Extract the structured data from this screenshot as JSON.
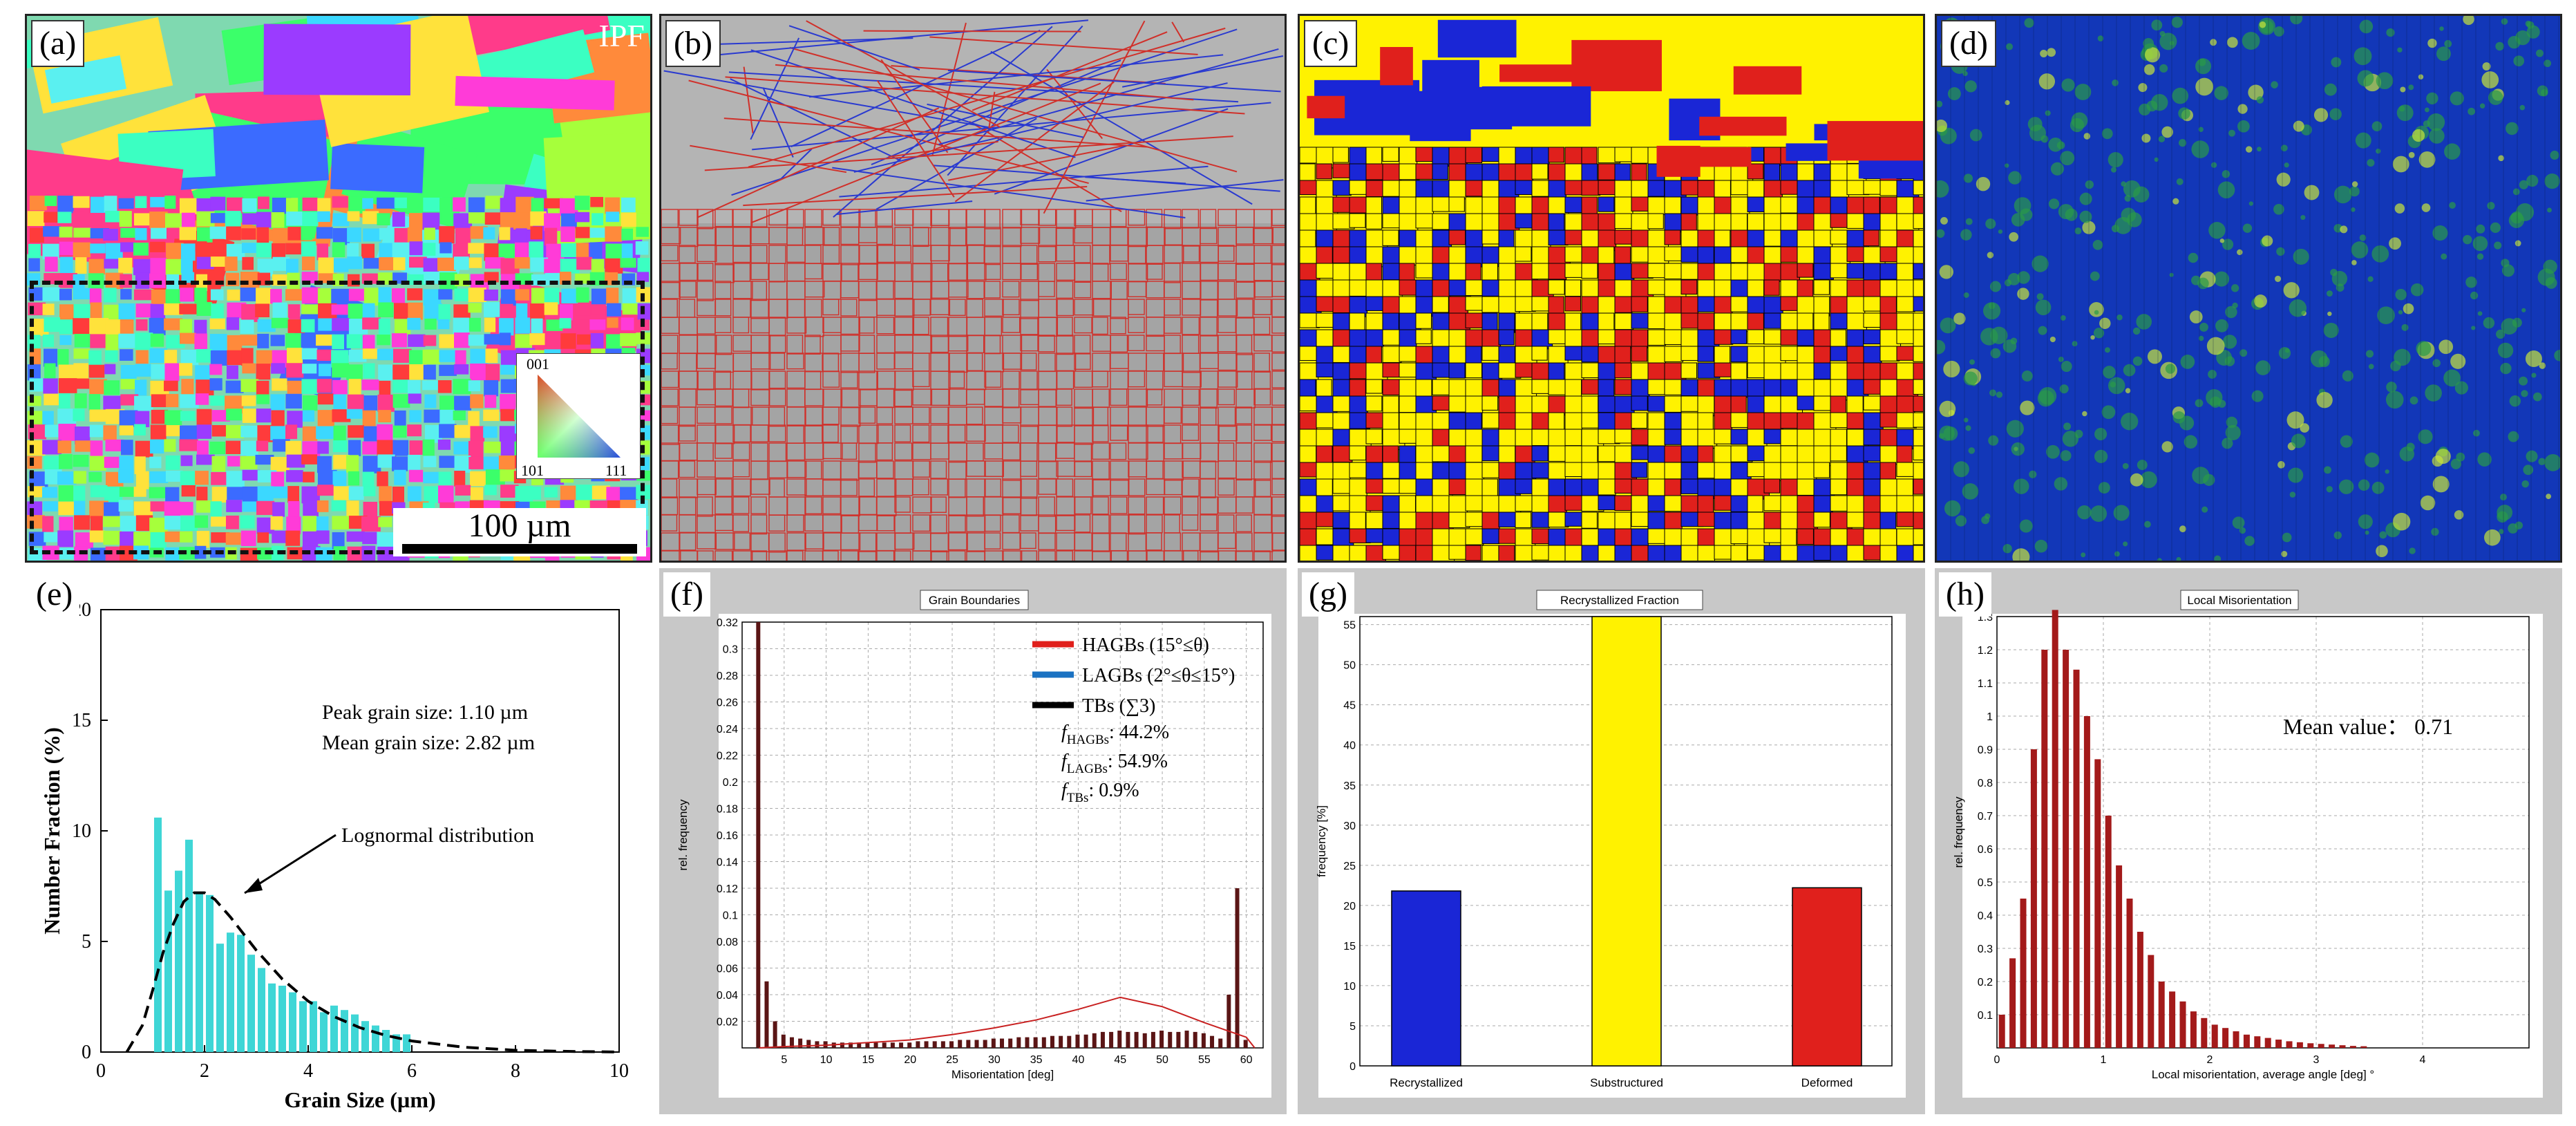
{
  "panels": {
    "a": {
      "label": "(a)",
      "corner_text": "IPF",
      "scalebar": "100 µm",
      "legend_001": "001",
      "legend_101": "101",
      "legend_111": "111"
    },
    "b": {
      "label": "(b)"
    },
    "c": {
      "label": "(c)"
    },
    "d": {
      "label": "(d)"
    },
    "e": {
      "label": "(e)"
    },
    "f": {
      "label": "(f)",
      "title": "Grain Boundaries"
    },
    "g": {
      "label": "(g)",
      "title": "Recrystallized Fraction"
    },
    "h": {
      "label": "(h)",
      "title": "Local Misorientation"
    }
  },
  "colors": {
    "red": "#e0201c",
    "blue": "#1a26d6",
    "yellow": "#fff200",
    "cyan": "#3fd6d6",
    "bar_dark": "#5a1515",
    "bar_h": "#a31a1a",
    "green_map": "#2a9a48"
  },
  "chart_data": [
    {
      "id": "e",
      "type": "bar",
      "xlabel": "Grain Size (µm)",
      "ylabel": "Number Fraction (%)",
      "xlim": [
        0,
        10
      ],
      "ylim": [
        0,
        20
      ],
      "xticks": [
        0,
        2,
        4,
        6,
        8,
        10
      ],
      "yticks": [
        0,
        5,
        10,
        15,
        20
      ],
      "annotations": [
        "Peak grain size:  1.10 µm",
        "Mean grain size:  2.82 µm",
        "Lognormal distribution"
      ],
      "bins_x": [
        1.1,
        1.3,
        1.5,
        1.7,
        1.9,
        2.1,
        2.3,
        2.5,
        2.7,
        2.9,
        3.1,
        3.3,
        3.5,
        3.7,
        3.9,
        4.1,
        4.3,
        4.5,
        4.7,
        4.9,
        5.1,
        5.3,
        5.5,
        5.7,
        5.9
      ],
      "values": [
        10.6,
        7.3,
        8.2,
        9.6,
        7.2,
        7.1,
        4.9,
        5.4,
        5.3,
        4.4,
        3.8,
        3.1,
        3.0,
        2.7,
        2.3,
        2.3,
        1.8,
        2.1,
        1.9,
        1.7,
        1.4,
        1.2,
        1.0,
        0.8,
        0.8
      ],
      "curve_x": [
        0.5,
        0.8,
        1.0,
        1.2,
        1.4,
        1.6,
        1.8,
        2.0,
        2.2,
        2.5,
        2.8,
        3.0,
        3.5,
        4.0,
        4.5,
        5.0,
        5.5,
        6.0,
        7.0,
        8.0,
        9.0,
        10.0
      ],
      "curve_y": [
        0.0,
        1.2,
        2.8,
        4.5,
        5.8,
        6.8,
        7.2,
        7.2,
        6.9,
        6.1,
        5.2,
        4.6,
        3.3,
        2.3,
        1.6,
        1.1,
        0.75,
        0.5,
        0.22,
        0.08,
        0.03,
        0.0
      ]
    },
    {
      "id": "f",
      "type": "bar",
      "title": "Grain Boundaries",
      "xlabel": "Misorientation [deg]",
      "ylabel": "rel. frequency",
      "xlim": [
        0,
        62
      ],
      "ylim": [
        0,
        0.32
      ],
      "xticks": [
        5,
        10,
        15,
        20,
        25,
        30,
        35,
        40,
        45,
        50,
        55,
        60
      ],
      "yticks": [
        0.02,
        0.04,
        0.06,
        0.08,
        0.1,
        0.12,
        0.14,
        0.16,
        0.18,
        0.2,
        0.22,
        0.24,
        0.26,
        0.28,
        0.3,
        0.32
      ],
      "legend": [
        {
          "name": "HAGBs (15°≤θ)",
          "color": "#e0201c"
        },
        {
          "name": "LAGBs (2°≤θ≤15°)",
          "color": "#1b72c2"
        },
        {
          "name": "TBs (∑3)",
          "color": "#000000"
        }
      ],
      "fractions": [
        {
          "sym": "f",
          "sub": "HAGBs",
          "value": ": 44.2%"
        },
        {
          "sym": "f",
          "sub": "LAGBs",
          "value": ": 54.9%"
        },
        {
          "sym": "f",
          "sub": "TBs",
          "value": ": 0.9%"
        }
      ],
      "bars_x": [
        2,
        3,
        4,
        5,
        6,
        7,
        8,
        9,
        10,
        11,
        12,
        13,
        14,
        15,
        16,
        17,
        18,
        19,
        20,
        21,
        22,
        23,
        24,
        25,
        26,
        27,
        28,
        29,
        30,
        31,
        32,
        33,
        34,
        35,
        36,
        37,
        38,
        39,
        40,
        41,
        42,
        43,
        44,
        45,
        46,
        47,
        48,
        49,
        50,
        51,
        52,
        53,
        54,
        55,
        56,
        57,
        58,
        59,
        60
      ],
      "bars_y": [
        0.32,
        0.05,
        0.02,
        0.01,
        0.008,
        0.007,
        0.006,
        0.005,
        0.005,
        0.004,
        0.004,
        0.004,
        0.004,
        0.004,
        0.004,
        0.004,
        0.004,
        0.004,
        0.004,
        0.005,
        0.005,
        0.005,
        0.005,
        0.005,
        0.006,
        0.006,
        0.006,
        0.006,
        0.007,
        0.007,
        0.007,
        0.008,
        0.008,
        0.008,
        0.008,
        0.009,
        0.009,
        0.009,
        0.01,
        0.01,
        0.011,
        0.012,
        0.012,
        0.013,
        0.012,
        0.012,
        0.011,
        0.012,
        0.013,
        0.012,
        0.012,
        0.013,
        0.012,
        0.011,
        0.009,
        0.007,
        0.04,
        0.12,
        0.006
      ],
      "curve_x": [
        2,
        5,
        10,
        15,
        20,
        25,
        30,
        35,
        40,
        45,
        50,
        55,
        60,
        61
      ],
      "curve_y": [
        0.0,
        0.001,
        0.002,
        0.004,
        0.006,
        0.01,
        0.015,
        0.021,
        0.029,
        0.038,
        0.031,
        0.019,
        0.008,
        0.0
      ]
    },
    {
      "id": "g",
      "type": "bar",
      "title": "Recrystallized Fraction",
      "ylabel": "frequency [%]",
      "ylim": [
        0,
        56
      ],
      "yticks": [
        0,
        5,
        10,
        15,
        20,
        25,
        30,
        35,
        40,
        45,
        50,
        55
      ],
      "categories": [
        "Recrystallized",
        "Substructured",
        "Deformed"
      ],
      "values": [
        21.8,
        56,
        22.2
      ],
      "bar_colors": [
        "#1a26d6",
        "#fff200",
        "#e0201c"
      ]
    },
    {
      "id": "h",
      "type": "bar",
      "title": "Local Misorientation",
      "xlabel": "Local misorientation, average angle [deg] °",
      "ylabel": "rel. frequency",
      "xlim": [
        0,
        5.0
      ],
      "ylim": [
        0,
        1.3
      ],
      "xticks": [
        0,
        1,
        2,
        3,
        4
      ],
      "yticks": [
        0.1,
        0.2,
        0.3,
        0.4,
        0.5,
        0.6,
        0.7,
        0.8,
        0.9,
        1,
        1.1,
        1.2,
        1.3
      ],
      "annotation": "Mean value：  0.71",
      "bars_x": [
        0.05,
        0.15,
        0.25,
        0.35,
        0.45,
        0.55,
        0.65,
        0.75,
        0.85,
        0.95,
        1.05,
        1.15,
        1.25,
        1.35,
        1.45,
        1.55,
        1.65,
        1.75,
        1.85,
        1.95,
        2.05,
        2.15,
        2.25,
        2.35,
        2.45,
        2.55,
        2.65,
        2.75,
        2.85,
        2.95,
        3.05,
        3.15,
        3.25,
        3.35,
        3.45
      ],
      "bars_y": [
        0.1,
        0.27,
        0.45,
        0.9,
        1.2,
        1.32,
        1.2,
        1.14,
        1.0,
        0.87,
        0.7,
        0.55,
        0.45,
        0.35,
        0.28,
        0.2,
        0.17,
        0.14,
        0.11,
        0.09,
        0.07,
        0.06,
        0.05,
        0.04,
        0.035,
        0.03,
        0.025,
        0.02,
        0.017,
        0.014,
        0.012,
        0.01,
        0.008,
        0.006,
        0.005
      ]
    }
  ]
}
